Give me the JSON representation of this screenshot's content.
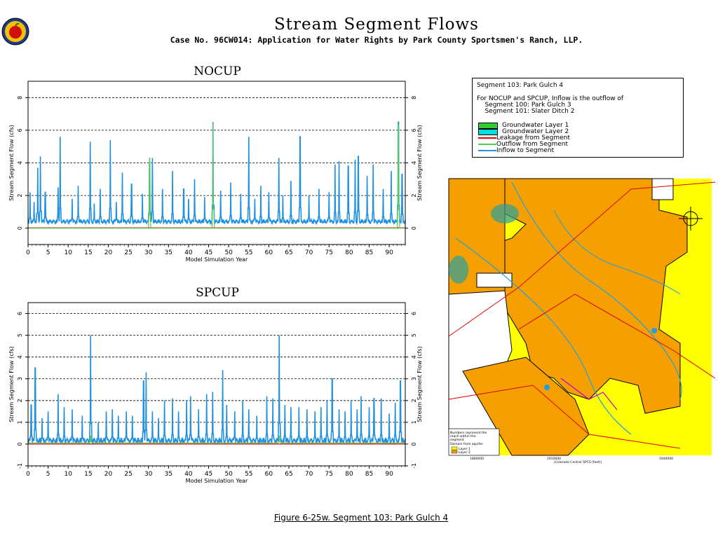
{
  "header": {
    "title": "Stream Segment Flows",
    "subtitle": "Case No. 96CW014: Application for Water Rights by Park County Sportsmen's Ranch, LLP.",
    "caption": "Figure 6-25w.  Segment 103: Park Gulch 4"
  },
  "legend": {
    "line1": "Segment 103: Park Gulch 4",
    "line2": "For NOCUP and SPCUP, Inflow is the outflow of",
    "line3": "    Segment 100: Park Gulch 3",
    "line4": "    Segment 101: Slater Ditch 2",
    "items": [
      {
        "label": "Groundwater Layer 1",
        "kind": "box",
        "color": "#33cc33"
      },
      {
        "label": "Groundwater Layer 2",
        "kind": "box",
        "color": "#00e0e0"
      },
      {
        "label": "Leakage from Segment",
        "kind": "line",
        "color": "#dd0000"
      },
      {
        "label": "Outflow from Segment",
        "kind": "line",
        "color": "#55cc55"
      },
      {
        "label": "Inflow to Segment",
        "kind": "line",
        "color": "#2090e0"
      }
    ]
  },
  "map": {
    "legend_line1": "Numbers represent the",
    "legend_line2": "reach within the",
    "legend_line3": "segment",
    "domain_label": "Domain from aquifer",
    "layer1": "Layer 1",
    "layer2": "Layer 2",
    "x_axis_label": "(Colorado Central SPCS (feet))",
    "x_ticks": [
      "1880000",
      "1910000",
      "1940000"
    ],
    "colors": {
      "layer1": "#ffff00",
      "layer2": "#f5a000",
      "stream": "#20a0e0",
      "road": "#dd0000"
    }
  },
  "chart_data": [
    {
      "type": "line",
      "title": "NOCUP",
      "xlabel": "Model Simulation Year",
      "ylabel": "Stream Segment Flow (cfs)",
      "ylabel_right": "Stream Segment Flow (cfs)",
      "xlim": [
        0,
        94
      ],
      "ylim": [
        -1,
        9
      ],
      "x_ticks": [
        0,
        5,
        10,
        15,
        20,
        25,
        30,
        35,
        40,
        45,
        50,
        55,
        60,
        65,
        70,
        75,
        80,
        85,
        90
      ],
      "y_ticks": [
        0,
        2,
        4,
        6,
        8
      ],
      "grid": "horizontal dashed at y ticks",
      "series": [
        {
          "name": "Inflow to Segment",
          "color": "#2090e0",
          "baseline": 0.3,
          "peaks": [
            [
              0.5,
              2.2
            ],
            [
              1.5,
              1.6
            ],
            [
              2.4,
              3.7
            ],
            [
              3.1,
              4.4
            ],
            [
              4.3,
              2.2
            ],
            [
              7.5,
              2.5
            ],
            [
              8.0,
              5.6
            ],
            [
              11.0,
              1.8
            ],
            [
              12.5,
              2.6
            ],
            [
              15.5,
              5.3
            ],
            [
              16.5,
              1.5
            ],
            [
              18.0,
              2.4
            ],
            [
              20.5,
              5.4
            ],
            [
              22.0,
              1.6
            ],
            [
              23.5,
              3.4
            ],
            [
              25.8,
              2.7
            ],
            [
              28.5,
              2.1
            ],
            [
              30.3,
              3.9
            ],
            [
              31.0,
              4.3
            ],
            [
              33.5,
              2.4
            ],
            [
              36.0,
              3.5
            ],
            [
              38.8,
              2.4
            ],
            [
              40.0,
              1.8
            ],
            [
              41.5,
              3.0
            ],
            [
              44.0,
              1.9
            ],
            [
              46.1,
              6.5
            ],
            [
              48.0,
              2.3
            ],
            [
              50.5,
              2.8
            ],
            [
              53.0,
              2.1
            ],
            [
              55.0,
              5.6
            ],
            [
              56.5,
              1.8
            ],
            [
              58.0,
              2.6
            ],
            [
              60.0,
              2.2
            ],
            [
              62.5,
              4.3
            ],
            [
              63.5,
              2.0
            ],
            [
              65.5,
              2.9
            ],
            [
              67.8,
              5.6
            ],
            [
              70.0,
              2.0
            ],
            [
              72.5,
              2.4
            ],
            [
              75.0,
              2.2
            ],
            [
              76.5,
              3.9
            ],
            [
              77.5,
              4.1
            ],
            [
              79.8,
              3.8
            ],
            [
              81.5,
              4.2
            ],
            [
              82.3,
              4.4
            ],
            [
              84.5,
              3.2
            ],
            [
              86.0,
              3.9
            ],
            [
              88.5,
              2.4
            ],
            [
              90.5,
              3.5
            ],
            [
              92.3,
              6.5
            ],
            [
              93.2,
              3.3
            ]
          ]
        },
        {
          "name": "Leakage from Segment",
          "color": "#dd0000",
          "baseline": 0.02,
          "peaks": []
        },
        {
          "name": "Outflow from Segment",
          "color": "#55cc55",
          "baseline": 0.0,
          "peaks": [
            [
              30.3,
              4.3
            ],
            [
              46.1,
              6.4
            ],
            [
              92.3,
              6.3
            ]
          ]
        }
      ]
    },
    {
      "type": "line",
      "title": "SPCUP",
      "xlabel": "Model Simulation Year",
      "ylabel": "Stream Segment Flow (cfs)",
      "ylabel_right": "Stream Segment Flow (cfs)",
      "xlim": [
        0,
        94
      ],
      "ylim": [
        -1,
        6.5
      ],
      "x_ticks": [
        0,
        5,
        10,
        15,
        20,
        25,
        30,
        35,
        40,
        45,
        50,
        55,
        60,
        65,
        70,
        75,
        80,
        85,
        90
      ],
      "y_ticks": [
        -1,
        0,
        1,
        2,
        3,
        4,
        5,
        6
      ],
      "grid": "horizontal dashed at y ticks",
      "series": [
        {
          "name": "Inflow to Segment",
          "color": "#2090e0",
          "baseline": 0.05,
          "peaks": [
            [
              0.8,
              1.8
            ],
            [
              1.8,
              3.5
            ],
            [
              3.5,
              1.2
            ],
            [
              5.0,
              1.5
            ],
            [
              7.5,
              2.3
            ],
            [
              9.0,
              1.7
            ],
            [
              11.0,
              1.6
            ],
            [
              13.5,
              1.3
            ],
            [
              15.6,
              5.0
            ],
            [
              17.5,
              1.0
            ],
            [
              19.5,
              1.5
            ],
            [
              21.0,
              1.6
            ],
            [
              22.5,
              1.3
            ],
            [
              24.5,
              1.5
            ],
            [
              26.0,
              1.3
            ],
            [
              28.8,
              2.9
            ],
            [
              29.4,
              3.3
            ],
            [
              31.0,
              1.5
            ],
            [
              32.5,
              1.2
            ],
            [
              34.0,
              2.0
            ],
            [
              36.0,
              2.1
            ],
            [
              37.5,
              1.5
            ],
            [
              39.5,
              2.0
            ],
            [
              40.5,
              2.2
            ],
            [
              42.5,
              1.6
            ],
            [
              44.5,
              2.3
            ],
            [
              46.0,
              2.4
            ],
            [
              48.5,
              3.4
            ],
            [
              49.5,
              1.8
            ],
            [
              51.5,
              1.5
            ],
            [
              53.5,
              2.0
            ],
            [
              55.0,
              1.6
            ],
            [
              57.0,
              1.3
            ],
            [
              59.5,
              2.2
            ],
            [
              61.0,
              2.1
            ],
            [
              62.6,
              5.0
            ],
            [
              64.0,
              1.8
            ],
            [
              65.5,
              1.7
            ],
            [
              67.5,
              1.7
            ],
            [
              69.5,
              1.6
            ],
            [
              71.5,
              1.5
            ],
            [
              73.0,
              1.7
            ],
            [
              74.5,
              2.0
            ],
            [
              75.8,
              3.0
            ],
            [
              77.5,
              1.6
            ],
            [
              79.0,
              1.5
            ],
            [
              80.5,
              2.0
            ],
            [
              82.0,
              1.6
            ],
            [
              83.0,
              2.2
            ],
            [
              85.0,
              1.7
            ],
            [
              86.2,
              2.1
            ],
            [
              88.0,
              2.1
            ],
            [
              90.0,
              1.4
            ],
            [
              91.5,
              1.9
            ],
            [
              92.8,
              2.9
            ]
          ]
        },
        {
          "name": "Leakage from Segment",
          "color": "#dd0000",
          "baseline": 0.0,
          "peaks": []
        },
        {
          "name": "Outflow from Segment",
          "color": "#55cc55",
          "baseline": 0.05,
          "peaks": [
            [
              15.6,
              0.4
            ],
            [
              62.6,
              0.4
            ]
          ]
        }
      ]
    }
  ]
}
